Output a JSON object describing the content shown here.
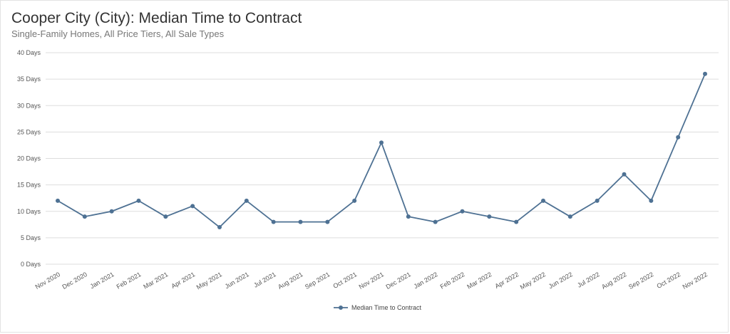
{
  "header": {
    "title": "Cooper City (City): Median Time to Contract",
    "subtitle": "Single-Family Homes, All Price Tiers, All Sale Types"
  },
  "colors": {
    "series": "#4e7193",
    "grid": "#dddddd",
    "axis_text": "#555555"
  },
  "chart_data": {
    "type": "line",
    "title": "Cooper City (City): Median Time to Contract",
    "subtitle": "Single-Family Homes, All Price Tiers, All Sale Types",
    "categories": [
      "Nov 2020",
      "Dec 2020",
      "Jan 2021",
      "Feb 2021",
      "Mar 2021",
      "Apr 2021",
      "May 2021",
      "Jun 2021",
      "Jul 2021",
      "Aug 2021",
      "Sep 2021",
      "Oct 2021",
      "Nov 2021",
      "Dec 2021",
      "Jan 2022",
      "Feb 2022",
      "Mar 2022",
      "Apr 2022",
      "May 2022",
      "Jun 2022",
      "Jul 2022",
      "Aug 2022",
      "Sep 2022",
      "Oct 2022",
      "Nov 2022"
    ],
    "series": [
      {
        "name": "Median Time to Contract",
        "values": [
          12,
          9,
          10,
          12,
          9,
          11,
          7,
          12,
          8,
          8,
          8,
          12,
          23,
          9,
          8,
          10,
          9,
          8,
          12,
          9,
          12,
          17,
          12,
          24,
          36
        ]
      }
    ],
    "ylim": [
      0,
      40
    ],
    "y_ticks": [
      0,
      5,
      10,
      15,
      20,
      25,
      30,
      35,
      40
    ],
    "y_tick_suffix": " Days",
    "grid": true,
    "legend": "bottom-center"
  }
}
